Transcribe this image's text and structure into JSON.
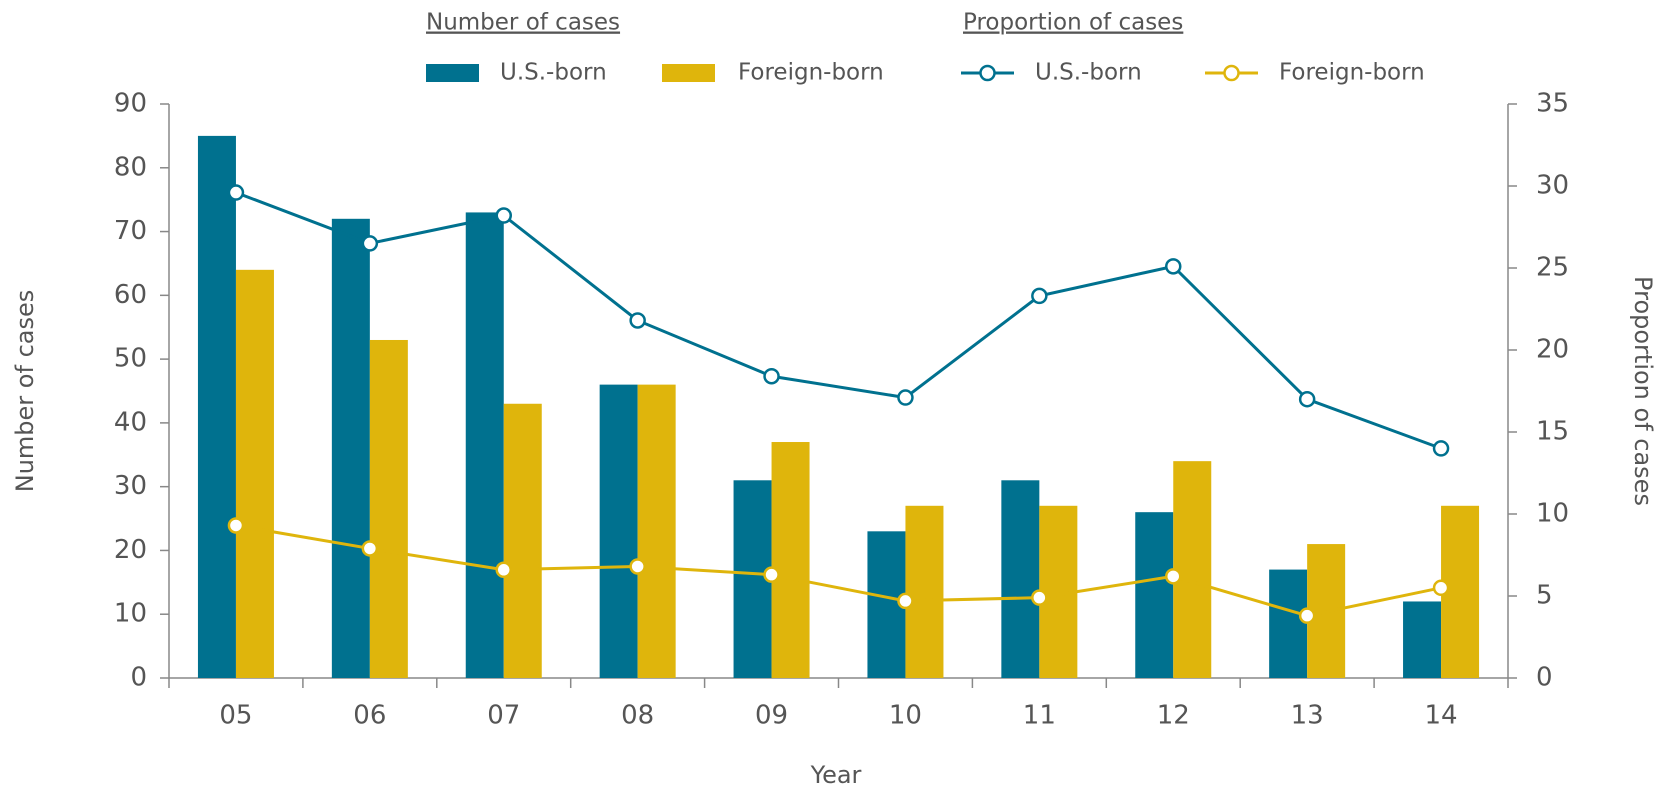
{
  "chart_data": {
    "type": "bar",
    "legend_titles": [
      "Number of cases",
      "Proportion of cases"
    ],
    "x_label": "Year",
    "y_label": "Number of cases",
    "y2_label": "Proportion of cases",
    "categories": [
      "05",
      "06",
      "07",
      "08",
      "09",
      "10",
      "11",
      "12",
      "13",
      "14"
    ],
    "series": [
      {
        "name": "U.S.-born",
        "type": "bar",
        "color": "#00718f",
        "values": [
          85,
          72,
          73,
          46,
          31,
          23,
          31,
          26,
          17,
          12
        ]
      },
      {
        "name": "Foreign-born",
        "type": "bar",
        "color": "#dfb50c",
        "values": [
          64,
          53,
          43,
          46,
          37,
          27,
          27,
          34,
          21,
          27
        ]
      },
      {
        "name": "U.S.-born",
        "type": "line",
        "axis": "y2",
        "color": "#00718f",
        "values": [
          29.6,
          26.5,
          28.2,
          21.8,
          18.4,
          17.1,
          23.3,
          25.1,
          17.0,
          14.0
        ]
      },
      {
        "name": "Foreign-born",
        "type": "line",
        "axis": "y2",
        "color": "#dfb50c",
        "values": [
          9.3,
          7.9,
          6.6,
          6.8,
          6.3,
          4.7,
          4.9,
          6.2,
          3.8,
          5.5
        ]
      }
    ],
    "ylim": [
      0,
      90
    ],
    "yticks": [
      0,
      10,
      20,
      30,
      40,
      50,
      60,
      70,
      80,
      90
    ],
    "y2lim": [
      0,
      35
    ],
    "y2ticks": [
      0,
      5,
      10,
      15,
      20,
      25,
      30,
      35
    ]
  }
}
